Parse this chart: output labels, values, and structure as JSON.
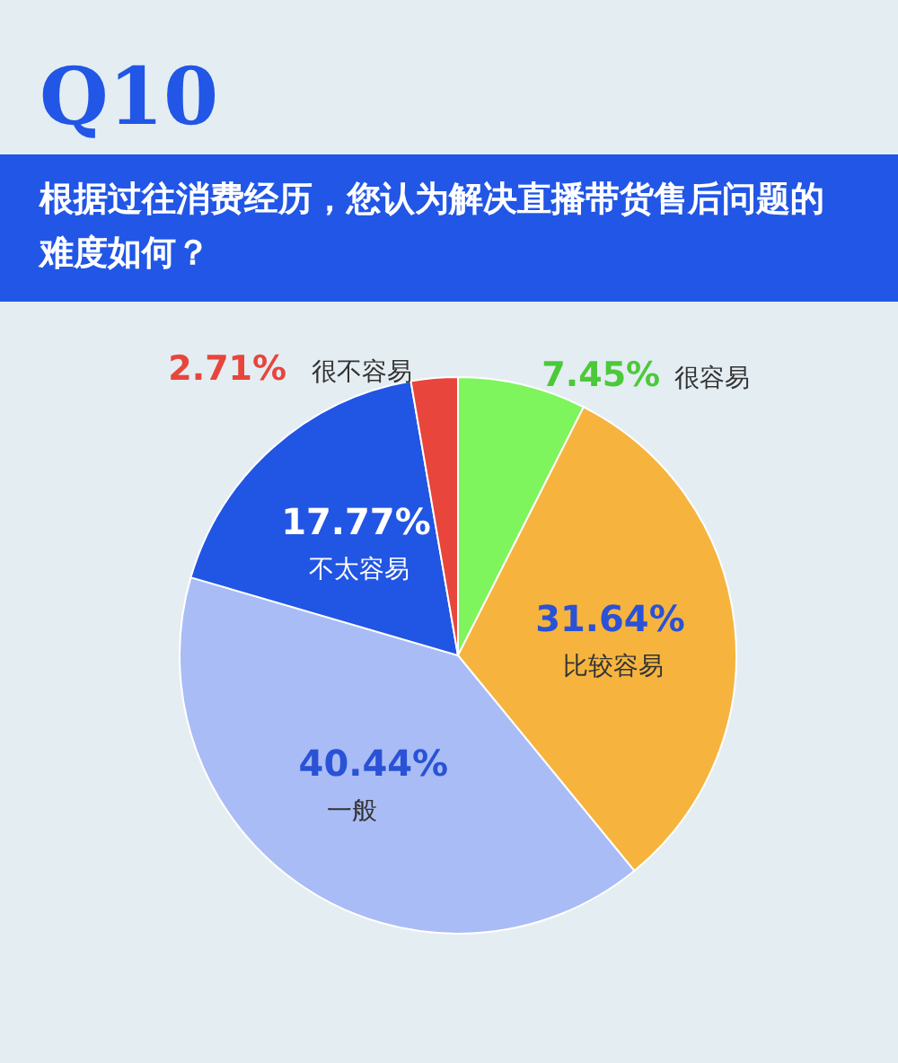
{
  "chart_data": {
    "type": "pie",
    "title": "Q10",
    "subtitle": "根据过往消费经历，您认为解决直播带货售后问题的难度如何？",
    "categories": [
      "很容易",
      "比较容易",
      "一般",
      "不太容易",
      "很不容易"
    ],
    "values": [
      7.45,
      31.64,
      40.44,
      17.77,
      2.71
    ],
    "colors": [
      "#7ef55c",
      "#f6b43e",
      "#a9bcf5",
      "#2155e3",
      "#e8453c"
    ],
    "value_labels": [
      "7.45%",
      "31.64%",
      "40.44%",
      "17.77%",
      "2.71%"
    ]
  }
}
